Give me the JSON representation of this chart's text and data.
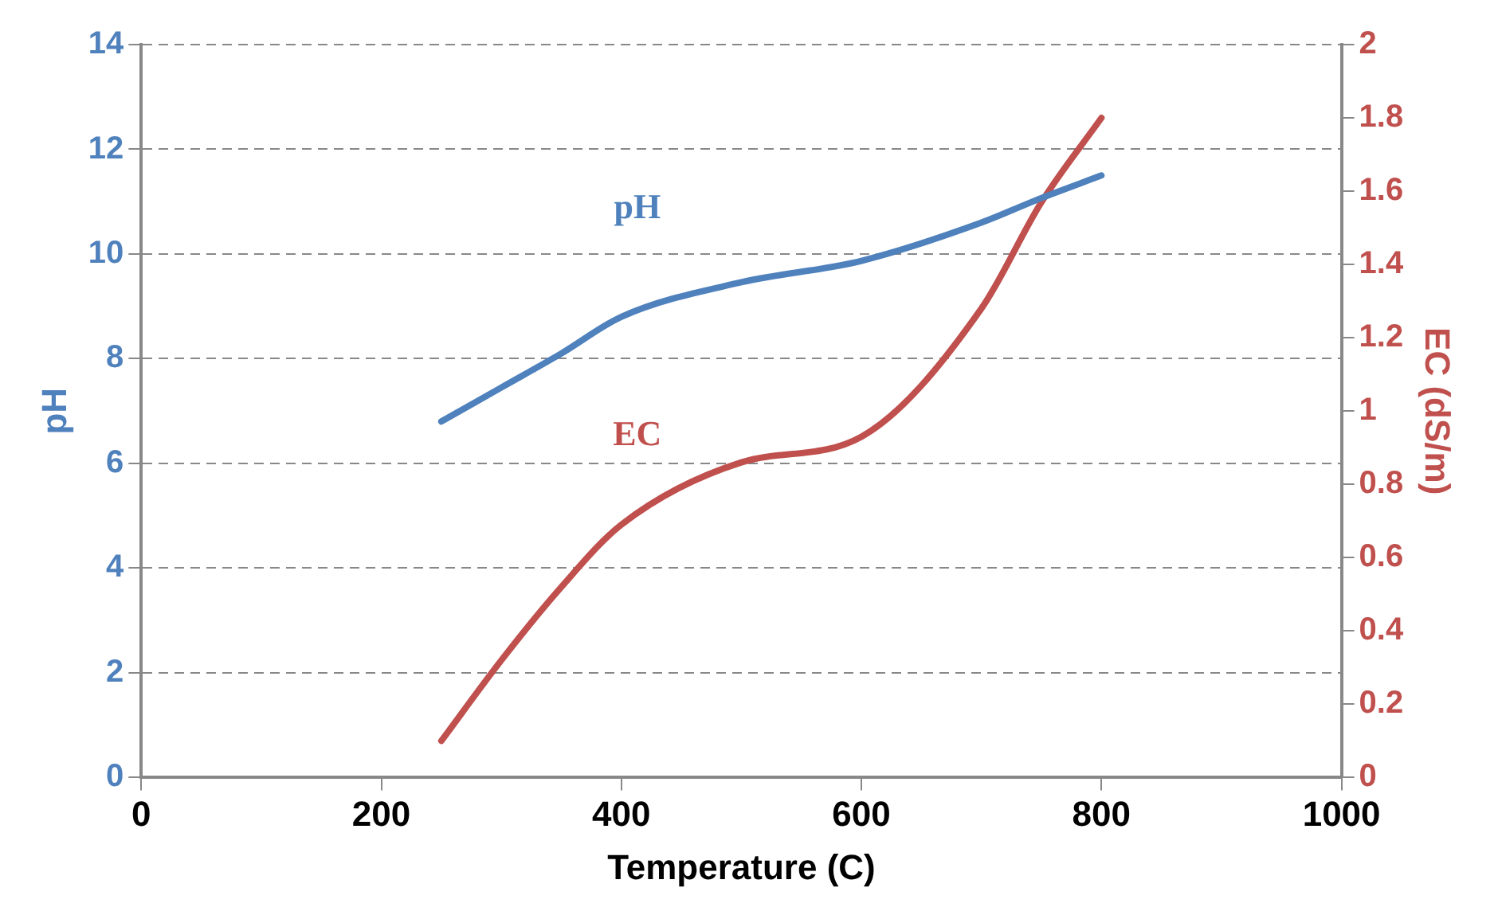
{
  "chart_data": {
    "type": "line",
    "xlabel": "Temperature (C)",
    "ylabel": "pH",
    "y2label": "EC (dS/m)",
    "x": [
      250,
      300,
      350,
      400,
      500,
      600,
      700,
      750,
      800
    ],
    "series": [
      {
        "name": "pH",
        "color": "#4f81bd",
        "values": [
          6.8,
          7.45,
          8.1,
          8.8,
          9.46,
          9.87,
          10.6,
          11.07,
          11.5
        ]
      },
      {
        "name": "EC",
        "color": "#c0504d",
        "axis": "y2",
        "values": [
          0.1,
          0.32,
          0.52,
          0.69,
          0.86,
          0.93,
          1.28,
          1.57,
          1.8
        ]
      }
    ],
    "xlim": [
      0,
      1000
    ],
    "xticks": [
      0,
      200,
      400,
      600,
      800,
      1000
    ],
    "ylim": [
      0,
      14
    ],
    "yticks": [
      0,
      2,
      4,
      6,
      8,
      10,
      12,
      14
    ],
    "y2lim": [
      0,
      2
    ],
    "y2ticks": [
      0,
      0.2,
      0.4,
      0.6,
      0.8,
      1,
      1.2,
      1.4,
      1.6,
      1.8,
      2
    ],
    "grid": "y",
    "legend": false,
    "marker": "none",
    "line_style": "solid"
  }
}
